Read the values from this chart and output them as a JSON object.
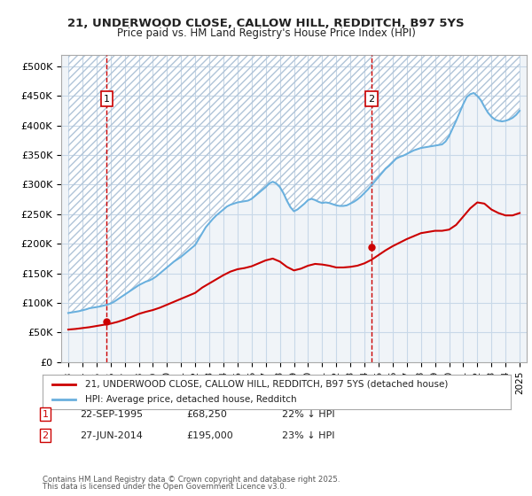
{
  "title1": "21, UNDERWOOD CLOSE, CALLOW HILL, REDDITCH, B97 5YS",
  "title2": "Price paid vs. HM Land Registry's House Price Index (HPI)",
  "ylabel_ticks": [
    "£0",
    "£50K",
    "£100K",
    "£150K",
    "£200K",
    "£250K",
    "£300K",
    "£350K",
    "£400K",
    "£450K",
    "£500K"
  ],
  "ytick_values": [
    0,
    50000,
    100000,
    150000,
    200000,
    250000,
    300000,
    350000,
    400000,
    450000,
    500000
  ],
  "ylim": [
    0,
    520000
  ],
  "xlim_start": 1992.5,
  "xlim_end": 2025.5,
  "xtick_years": [
    1993,
    1994,
    1995,
    1996,
    1997,
    1998,
    1999,
    2000,
    2001,
    2002,
    2003,
    2004,
    2005,
    2006,
    2007,
    2008,
    2009,
    2010,
    2011,
    2012,
    2013,
    2014,
    2015,
    2016,
    2017,
    2018,
    2019,
    2020,
    2021,
    2022,
    2023,
    2024,
    2025
  ],
  "hpi_color": "#6ab0de",
  "sale_color": "#cc0000",
  "hatch_color": "#c8d8e8",
  "grid_color": "#c8d8e8",
  "bg_color": "#f0f4f8",
  "legend_label_sale": "21, UNDERWOOD CLOSE, CALLOW HILL, REDDITCH, B97 5YS (detached house)",
  "legend_label_hpi": "HPI: Average price, detached house, Redditch",
  "sale1_date": 1995.73,
  "sale1_price": 68250,
  "sale1_label": "1",
  "sale2_date": 2014.49,
  "sale2_price": 195000,
  "sale2_label": "2",
  "footer1": "Contains HM Land Registry data © Crown copyright and database right 2025.",
  "footer2": "This data is licensed under the Open Government Licence v3.0.",
  "table_row1": [
    "1",
    "22-SEP-1995",
    "£68,250",
    "22% ↓ HPI"
  ],
  "table_row2": [
    "2",
    "27-JUN-2014",
    "£195,000",
    "23% ↓ HPI"
  ],
  "hpi_x": [
    1993.0,
    1993.25,
    1993.5,
    1993.75,
    1994.0,
    1994.25,
    1994.5,
    1994.75,
    1995.0,
    1995.25,
    1995.5,
    1995.75,
    1996.0,
    1996.25,
    1996.5,
    1996.75,
    1997.0,
    1997.25,
    1997.5,
    1997.75,
    1998.0,
    1998.25,
    1998.5,
    1998.75,
    1999.0,
    1999.25,
    1999.5,
    1999.75,
    2000.0,
    2000.25,
    2000.5,
    2000.75,
    2001.0,
    2001.25,
    2001.5,
    2001.75,
    2002.0,
    2002.25,
    2002.5,
    2002.75,
    2003.0,
    2003.25,
    2003.5,
    2003.75,
    2004.0,
    2004.25,
    2004.5,
    2004.75,
    2005.0,
    2005.25,
    2005.5,
    2005.75,
    2006.0,
    2006.25,
    2006.5,
    2006.75,
    2007.0,
    2007.25,
    2007.5,
    2007.75,
    2008.0,
    2008.25,
    2008.5,
    2008.75,
    2009.0,
    2009.25,
    2009.5,
    2009.75,
    2010.0,
    2010.25,
    2010.5,
    2010.75,
    2011.0,
    2011.25,
    2011.5,
    2011.75,
    2012.0,
    2012.25,
    2012.5,
    2012.75,
    2013.0,
    2013.25,
    2013.5,
    2013.75,
    2014.0,
    2014.25,
    2014.5,
    2014.75,
    2015.0,
    2015.25,
    2015.5,
    2015.75,
    2016.0,
    2016.25,
    2016.5,
    2016.75,
    2017.0,
    2017.25,
    2017.5,
    2017.75,
    2018.0,
    2018.25,
    2018.5,
    2018.75,
    2019.0,
    2019.25,
    2019.5,
    2019.75,
    2020.0,
    2020.25,
    2020.5,
    2020.75,
    2021.0,
    2021.25,
    2021.5,
    2021.75,
    2022.0,
    2022.25,
    2022.5,
    2022.75,
    2023.0,
    2023.25,
    2023.5,
    2023.75,
    2024.0,
    2024.25,
    2024.5,
    2024.75,
    2025.0
  ],
  "hpi_y": [
    83000,
    84000,
    85000,
    86000,
    87500,
    89000,
    91000,
    92000,
    93000,
    94000,
    95500,
    97000,
    99000,
    102000,
    106000,
    110000,
    114000,
    118000,
    122000,
    126000,
    130000,
    133000,
    136000,
    138000,
    141000,
    145000,
    150000,
    155000,
    160000,
    165000,
    170000,
    174000,
    178000,
    183000,
    188000,
    193000,
    198000,
    208000,
    218000,
    228000,
    235000,
    242000,
    248000,
    253000,
    258000,
    263000,
    266000,
    268000,
    270000,
    271000,
    272000,
    273000,
    276000,
    281000,
    286000,
    291000,
    296000,
    302000,
    305000,
    302000,
    296000,
    286000,
    273000,
    262000,
    255000,
    258000,
    263000,
    268000,
    274000,
    276000,
    274000,
    271000,
    269000,
    270000,
    269000,
    267000,
    265000,
    264000,
    264000,
    265000,
    268000,
    271000,
    275000,
    280000,
    286000,
    292000,
    299000,
    306000,
    313000,
    320000,
    327000,
    332000,
    338000,
    344000,
    347000,
    349000,
    352000,
    355000,
    358000,
    360000,
    362000,
    363000,
    364000,
    365000,
    366000,
    367000,
    368000,
    373000,
    382000,
    395000,
    408000,
    422000,
    436000,
    448000,
    453000,
    455000,
    450000,
    443000,
    432000,
    422000,
    415000,
    410000,
    408000,
    407000,
    408000,
    410000,
    413000,
    418000,
    425000
  ],
  "sale_x": [
    1993.0,
    1993.5,
    1994.0,
    1994.5,
    1995.0,
    1995.5,
    1996.0,
    1996.5,
    1997.0,
    1997.5,
    1998.0,
    1998.5,
    1999.0,
    1999.5,
    2000.0,
    2000.5,
    2001.0,
    2001.5,
    2002.0,
    2002.5,
    2003.0,
    2003.5,
    2004.0,
    2004.5,
    2005.0,
    2005.5,
    2006.0,
    2006.5,
    2007.0,
    2007.5,
    2008.0,
    2008.5,
    2009.0,
    2009.5,
    2010.0,
    2010.5,
    2011.0,
    2011.5,
    2012.0,
    2012.5,
    2013.0,
    2013.5,
    2014.0,
    2014.5,
    2015.0,
    2015.5,
    2016.0,
    2016.5,
    2017.0,
    2017.5,
    2018.0,
    2018.5,
    2019.0,
    2019.5,
    2020.0,
    2020.5,
    2021.0,
    2021.5,
    2022.0,
    2022.5,
    2023.0,
    2023.5,
    2024.0,
    2024.5,
    2025.0
  ],
  "sale_y": [
    55000,
    56000,
    57500,
    59000,
    61000,
    63000,
    65000,
    68000,
    72000,
    76500,
    81500,
    85000,
    88000,
    92000,
    97000,
    102000,
    107000,
    112000,
    117000,
    126000,
    133000,
    140000,
    147000,
    153000,
    157000,
    159000,
    162000,
    167000,
    172000,
    175000,
    170000,
    161000,
    155000,
    158000,
    163000,
    166000,
    165000,
    163000,
    160000,
    160000,
    161000,
    163000,
    167000,
    173000,
    181000,
    189000,
    196000,
    202000,
    208000,
    213000,
    218000,
    220000,
    222000,
    222000,
    224000,
    232000,
    246000,
    260000,
    270000,
    268000,
    258000,
    252000,
    248000,
    248000,
    252000
  ]
}
